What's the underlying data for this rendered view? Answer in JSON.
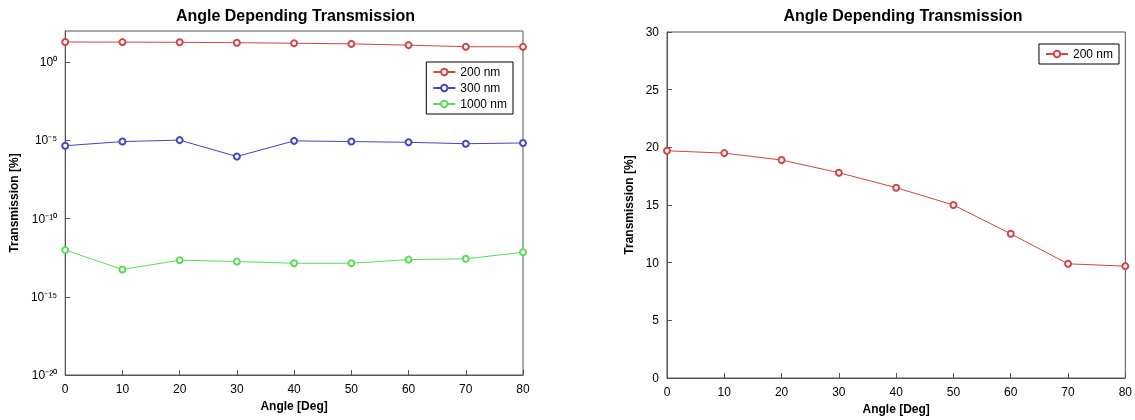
{
  "chart_data": [
    {
      "type": "line",
      "title": "Angle Depending Transmission",
      "xlabel": "Angle [Deg]",
      "ylabel": "Transmission [%]",
      "x": [
        0,
        10,
        20,
        30,
        40,
        50,
        60,
        70,
        80
      ],
      "series": [
        {
          "name": "200 nm",
          "color": "#d24444",
          "values": [
            19.7,
            19.5,
            18.9,
            17.8,
            16.5,
            15,
            12.5,
            9.9,
            9.7
          ]
        },
        {
          "name": "300 nm",
          "color": "#4444cc",
          "values": [
            4.6e-06,
            8.5e-06,
            1.05e-05,
            9.4e-07,
            9.4e-06,
            8.5e-06,
            7.6e-06,
            6.2e-06,
            6.9e-06
          ]
        },
        {
          "name": "1000 nm",
          "color": "#55dd55",
          "values": [
            9.8e-13,
            5.6e-14,
            2.2e-13,
            1.8e-13,
            1.4e-13,
            1.4e-13,
            2.4e-13,
            2.7e-13,
            7.1e-13
          ]
        }
      ],
      "log": "y",
      "xlim": [
        0,
        80
      ],
      "xticks": [
        0,
        10,
        20,
        30,
        40,
        50,
        60,
        70,
        80
      ],
      "ylim": [
        1e-20,
        100
      ],
      "yticks": [
        {
          "value": 1e-20,
          "label": "10⁻²⁰"
        },
        {
          "value": 1e-15,
          "label": "10⁻¹⁵"
        },
        {
          "value": 1e-10,
          "label": "10⁻¹⁰"
        },
        {
          "value": 1e-05,
          "label": "10⁻⁵"
        },
        {
          "value": 1,
          "label": "10⁰"
        }
      ],
      "legend": "top right",
      "marker": "circle",
      "grid": false
    },
    {
      "type": "line",
      "title": "Angle Depending Transmission",
      "xlabel": "Angle [Deg]",
      "ylabel": "Transmission [%]",
      "x": [
        0,
        10,
        20,
        30,
        40,
        50,
        60,
        70,
        80
      ],
      "series": [
        {
          "name": "200 nm",
          "color": "#d24444",
          "values": [
            19.7,
            19.5,
            18.9,
            17.8,
            16.5,
            15,
            12.5,
            9.9,
            9.7
          ]
        }
      ],
      "xlim": [
        0,
        80
      ],
      "xticks": [
        0,
        10,
        20,
        30,
        40,
        50,
        60,
        70,
        80
      ],
      "ylim": [
        0,
        30
      ],
      "yticks": [
        0,
        5,
        10,
        15,
        20,
        25,
        30
      ],
      "legend": "top right",
      "marker": "circle",
      "grid": false
    }
  ]
}
